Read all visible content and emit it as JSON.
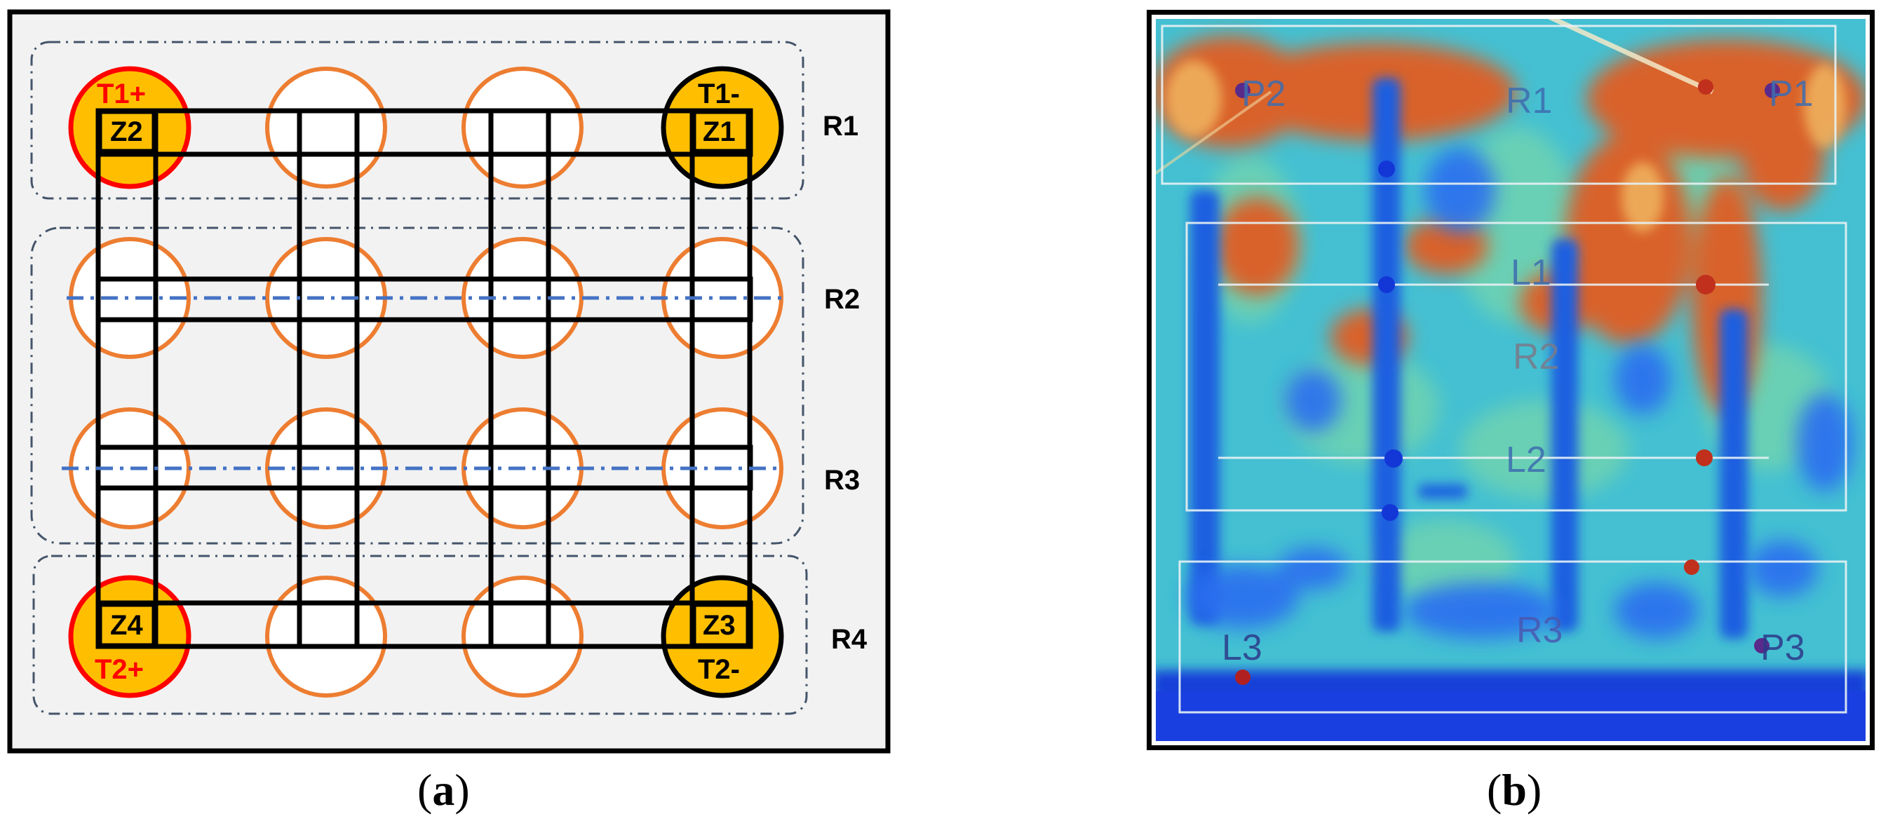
{
  "panel_a": {
    "caption_letter": "a",
    "region_labels": [
      "R1",
      "R2",
      "R3",
      "R4"
    ],
    "terminals": {
      "t1_plus": "T1+",
      "t1_minus": "T1-",
      "t2_plus": "T2+",
      "t2_minus": "T2-"
    },
    "zones": {
      "z1": "Z1",
      "z2": "Z2",
      "z3": "Z3",
      "z4": "Z4"
    },
    "colors": {
      "terminal_fill": "#FFBF00",
      "positive_border": "#FF0000",
      "negative_border": "#000000",
      "hole_border": "#ED7D31",
      "centerline": "#4472C4",
      "background": "#F2F2F2"
    }
  },
  "panel_b": {
    "caption_letter": "b",
    "labels": {
      "p1": "P1",
      "p2": "P2",
      "p3": "P3",
      "r1": "R1",
      "r2": "R2",
      "r3": "R3",
      "l1": "L1",
      "l2": "L2",
      "l3": "L3"
    }
  }
}
